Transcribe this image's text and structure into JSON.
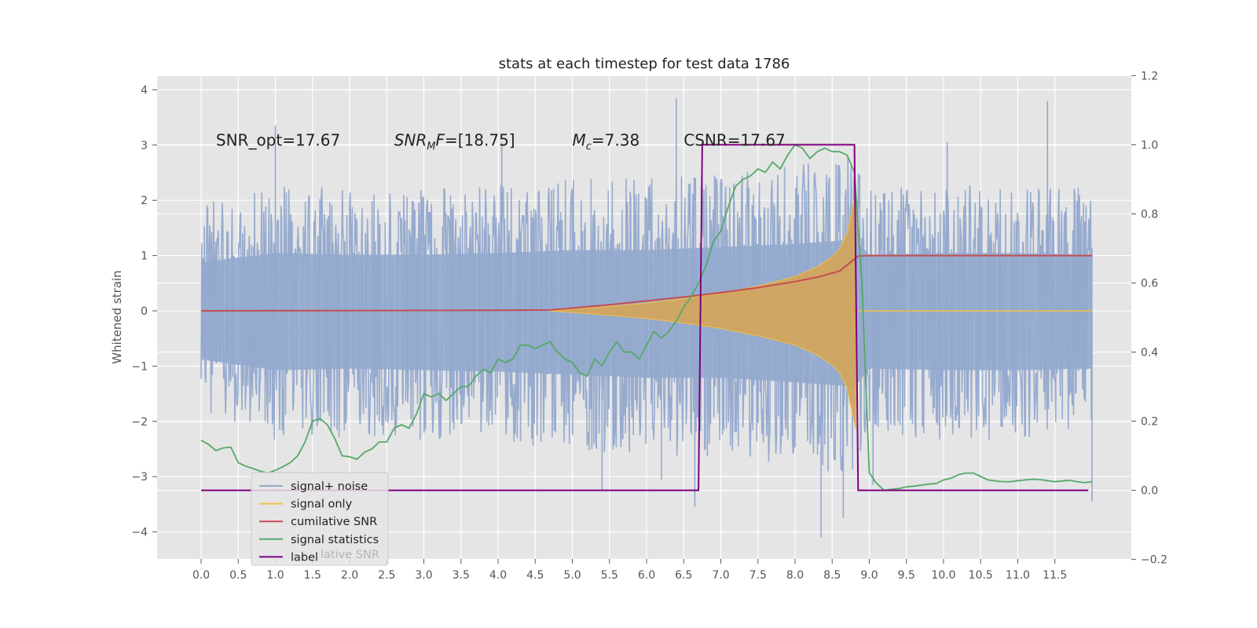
{
  "chart_data": {
    "type": "line",
    "title": "stats at each timestep for test data 1786",
    "ylabel": "Whitened strain",
    "xlim": [
      -0.6,
      12.6
    ],
    "ylim": [
      -4.5,
      4.25
    ],
    "y2lim": [
      -0.2,
      1.2
    ],
    "grid": true,
    "x_ticks": [
      "0.0",
      "0.5",
      "1.0",
      "1.5",
      "2.0",
      "2.5",
      "3.0",
      "3.5",
      "4.0",
      "4.5",
      "5.0",
      "5.5",
      "6.0",
      "6.5",
      "7.0",
      "7.5",
      "8.0",
      "8.5",
      "9.0",
      "9.5",
      "10.0",
      "10.5",
      "11.0",
      "11.5"
    ],
    "y_ticks": [
      "4",
      "3",
      "2",
      "1",
      "0",
      "−1",
      "−2",
      "−3",
      "−4"
    ],
    "y2_ticks": [
      "1.2",
      "1.0",
      "0.8",
      "0.6",
      "0.4",
      "0.2",
      "0.0",
      "−0.2"
    ],
    "annotations": [
      {
        "text": "SNR_opt=17.67",
        "x": 0.2,
        "y": 3.05
      },
      {
        "text": "SNR_M F=[18.75]",
        "x": 2.6,
        "y": 3.05
      },
      {
        "text": "M_c=7.38",
        "x": 5.0,
        "y": 3.05
      },
      {
        "text": "CSNR=17.67",
        "x": 6.5,
        "y": 3.05
      }
    ],
    "legend_position": "lower-left",
    "legend": [
      {
        "name": "signal+ noise",
        "color": "#92a8cd"
      },
      {
        "name": "signal only",
        "color": "#eec149"
      },
      {
        "name": "cumilative SNR",
        "color": "#c44e52"
      },
      {
        "name": "signal statistics",
        "color": "#55a868"
      },
      {
        "name": "label",
        "color": "#800080"
      }
    ],
    "hidden_legend_text": "lative SNR",
    "series": [
      {
        "name": "signal+ noise",
        "axis": "left",
        "style": "noise-band",
        "x_range": [
          0.0,
          12.0
        ],
        "envelope_upper": [
          [
            0.0,
            1.6
          ],
          [
            1.0,
            1.9
          ],
          [
            2.0,
            1.85
          ],
          [
            3.0,
            1.85
          ],
          [
            4.0,
            1.9
          ],
          [
            5.0,
            2.0
          ],
          [
            6.0,
            2.0
          ],
          [
            7.0,
            2.1
          ],
          [
            8.0,
            2.2
          ],
          [
            8.8,
            2.35
          ],
          [
            9.0,
            1.85
          ],
          [
            10.0,
            1.9
          ],
          [
            11.0,
            1.9
          ],
          [
            12.0,
            1.85
          ]
        ],
        "envelope_lower": [
          [
            0.0,
            -1.6
          ],
          [
            1.0,
            -1.95
          ],
          [
            2.0,
            -1.9
          ],
          [
            3.0,
            -1.95
          ],
          [
            4.0,
            -2.0
          ],
          [
            5.0,
            -2.1
          ],
          [
            6.0,
            -2.2
          ],
          [
            7.0,
            -2.2
          ],
          [
            8.0,
            -2.35
          ],
          [
            8.8,
            -2.5
          ],
          [
            9.0,
            -1.9
          ],
          [
            10.0,
            -1.95
          ],
          [
            11.0,
            -1.95
          ],
          [
            12.0,
            -1.9
          ]
        ],
        "peaks": [
          [
            1.0,
            3.35
          ],
          [
            4.05,
            3.05
          ],
          [
            6.4,
            3.85
          ],
          [
            11.4,
            3.8
          ],
          [
            10.05,
            3.05
          ],
          [
            8.35,
            -4.1
          ],
          [
            6.65,
            -3.55
          ],
          [
            5.4,
            -3.25
          ],
          [
            8.65,
            -3.75
          ],
          [
            12.0,
            -3.45
          ],
          [
            9.05,
            -3.15
          ],
          [
            6.2,
            -3.05
          ]
        ]
      },
      {
        "name": "signal only",
        "axis": "left",
        "style": "chirp",
        "x_range": [
          4.7,
          8.85
        ],
        "envelope": [
          [
            4.7,
            0.0
          ],
          [
            5.0,
            0.03
          ],
          [
            5.5,
            0.08
          ],
          [
            6.0,
            0.14
          ],
          [
            6.5,
            0.22
          ],
          [
            7.0,
            0.32
          ],
          [
            7.5,
            0.45
          ],
          [
            8.0,
            0.62
          ],
          [
            8.3,
            0.8
          ],
          [
            8.5,
            0.98
          ],
          [
            8.6,
            1.12
          ],
          [
            8.7,
            1.4
          ],
          [
            8.78,
            1.9
          ],
          [
            8.82,
            2.15
          ]
        ],
        "after_merger_level": 0.0
      },
      {
        "name": "cumilative SNR",
        "axis": "left",
        "x": [
          0.0,
          1.0,
          2.0,
          3.0,
          4.0,
          4.7,
          5.0,
          5.5,
          6.0,
          6.5,
          7.0,
          7.5,
          8.0,
          8.3,
          8.6,
          8.85,
          9.0,
          10.0,
          11.0,
          12.0
        ],
        "values": [
          0.0,
          0.003,
          0.006,
          0.009,
          0.012,
          0.015,
          0.05,
          0.11,
          0.18,
          0.25,
          0.33,
          0.42,
          0.53,
          0.61,
          0.72,
          0.99,
          1.0,
          1.0,
          1.0,
          1.0
        ]
      },
      {
        "name": "signal statistics",
        "axis": "right",
        "x": [
          0.0,
          0.1,
          0.2,
          0.3,
          0.4,
          0.5,
          0.6,
          0.7,
          0.8,
          0.9,
          1.0,
          1.1,
          1.2,
          1.3,
          1.4,
          1.5,
          1.6,
          1.7,
          1.8,
          1.9,
          2.0,
          2.1,
          2.2,
          2.3,
          2.4,
          2.5,
          2.6,
          2.7,
          2.8,
          2.9,
          3.0,
          3.1,
          3.2,
          3.3,
          3.4,
          3.5,
          3.6,
          3.7,
          3.8,
          3.9,
          4.0,
          4.1,
          4.2,
          4.3,
          4.4,
          4.5,
          4.6,
          4.7,
          4.8,
          4.9,
          5.0,
          5.1,
          5.2,
          5.3,
          5.4,
          5.5,
          5.6,
          5.7,
          5.8,
          5.9,
          6.0,
          6.1,
          6.2,
          6.3,
          6.4,
          6.5,
          6.6,
          6.7,
          6.8,
          6.9,
          7.0,
          7.1,
          7.2,
          7.3,
          7.4,
          7.5,
          7.6,
          7.7,
          7.8,
          7.9,
          8.0,
          8.1,
          8.2,
          8.3,
          8.4,
          8.5,
          8.6,
          8.7,
          8.8,
          8.9,
          9.0,
          9.1,
          9.2,
          9.3,
          9.4,
          9.5,
          9.6,
          9.7,
          9.8,
          9.9,
          10.0,
          10.1,
          10.2,
          10.3,
          10.4,
          10.5,
          10.6,
          10.7,
          10.8,
          10.9,
          11.0,
          11.1,
          11.2,
          11.3,
          11.4,
          11.5,
          11.6,
          11.7,
          11.8,
          11.9,
          12.0
        ],
        "values": [
          0.145,
          0.133,
          0.115,
          0.123,
          0.125,
          0.08,
          0.07,
          0.063,
          0.055,
          0.05,
          0.058,
          0.068,
          0.08,
          0.1,
          0.14,
          0.2,
          0.208,
          0.19,
          0.15,
          0.1,
          0.097,
          0.09,
          0.11,
          0.12,
          0.14,
          0.14,
          0.18,
          0.19,
          0.18,
          0.22,
          0.28,
          0.27,
          0.28,
          0.26,
          0.28,
          0.3,
          0.3,
          0.33,
          0.35,
          0.34,
          0.38,
          0.37,
          0.38,
          0.42,
          0.42,
          0.41,
          0.42,
          0.43,
          0.4,
          0.38,
          0.37,
          0.34,
          0.33,
          0.38,
          0.36,
          0.4,
          0.43,
          0.4,
          0.4,
          0.38,
          0.42,
          0.46,
          0.44,
          0.46,
          0.49,
          0.53,
          0.56,
          0.6,
          0.65,
          0.72,
          0.75,
          0.82,
          0.88,
          0.9,
          0.91,
          0.93,
          0.92,
          0.95,
          0.93,
          0.97,
          1.0,
          0.99,
          0.96,
          0.98,
          0.99,
          0.98,
          0.98,
          0.97,
          0.92,
          0.6,
          0.05,
          0.02,
          0.0,
          0.003,
          0.005,
          0.01,
          0.012,
          0.015,
          0.018,
          0.02,
          0.03,
          0.035,
          0.045,
          0.05,
          0.05,
          0.04,
          0.03,
          0.027,
          0.025,
          0.025,
          0.028,
          0.03,
          0.032,
          0.031,
          0.028,
          0.025,
          0.027,
          0.029,
          0.025,
          0.022,
          0.025
        ],
        "x_lag_note": ""
      },
      {
        "name": "label",
        "axis": "right",
        "x": [
          0.0,
          6.7,
          6.75,
          8.8,
          8.85,
          11.95
        ],
        "values": [
          0.0,
          0.0,
          1.0,
          1.0,
          0.0,
          0.0
        ]
      }
    ]
  },
  "colors": {
    "plot_bg": "#e5e5e5",
    "grid": "#ffffff",
    "noise": "#92a8cd",
    "signal": "#eec149",
    "signal_fill": "#d4a55a",
    "cum_snr": "#c44e52",
    "stats": "#55a868",
    "label": "#800080"
  }
}
